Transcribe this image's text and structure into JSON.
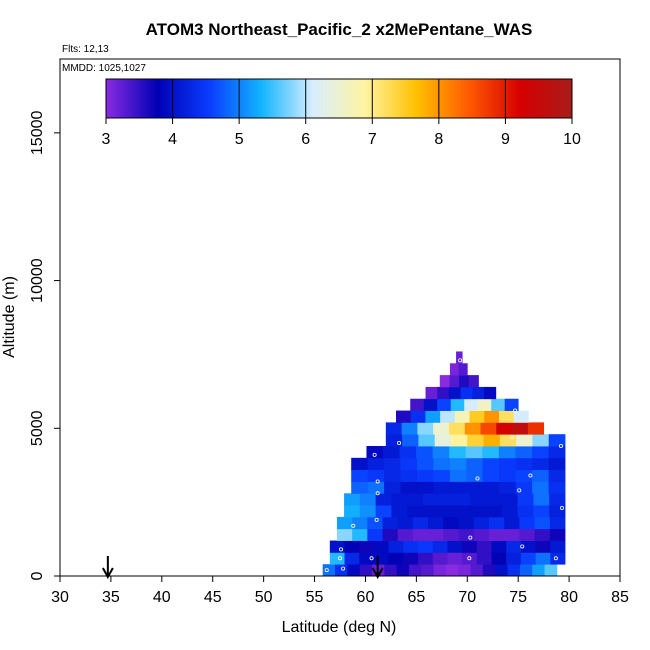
{
  "chart_data": {
    "type": "heatmap",
    "title": "ATOM3 Northeast_Pacific_2 x2MePentane_WAS",
    "flights_label": "Flts: 12,13",
    "dates_label": "MMDD: 1025,1027",
    "xlabel": "Latitude (deg N)",
    "ylabel": "Altitude (m)",
    "xlim": [
      30,
      85
    ],
    "ylim": [
      0,
      17500
    ],
    "x_ticks": [
      "30",
      "35",
      "40",
      "45",
      "50",
      "55",
      "60",
      "65",
      "70",
      "75",
      "80",
      "85"
    ],
    "y_ticks": [
      "0",
      "5000",
      "10000",
      "15000"
    ],
    "colorbar": {
      "range": [
        3,
        10
      ],
      "ticks": [
        "3",
        "4",
        "5",
        "6",
        "7",
        "8",
        "9",
        "10"
      ],
      "colors": [
        "#8a2be2",
        "#0000b4",
        "#0a3cff",
        "#12b4ff",
        "#d8eeff",
        "#fff4a0",
        "#ffc000",
        "#ff5a00",
        "#d60000",
        "#a81c1c"
      ]
    },
    "arrows_at_latitude": [
      34.7,
      61.2
    ],
    "altitude_bands": [
      {
        "alt": 200,
        "lat_min": 55.8,
        "lat_max": 78.8,
        "values": [
          4.9,
          4.4,
          3.9,
          3.5,
          3.2,
          3.5,
          3.7,
          3.4,
          3.3,
          3.1,
          3.0,
          3.1,
          3.3,
          3.6,
          4.0,
          4.4,
          4.8,
          5.2,
          5.6
        ]
      },
      {
        "alt": 600,
        "lat_min": 56.5,
        "lat_max": 79.6,
        "values": [
          5.4,
          4.3,
          3.9,
          3.9,
          3.8,
          3.7,
          3.5,
          3.3,
          3.2,
          3.3,
          3.5,
          3.8,
          4.2,
          4.6,
          4.9,
          4.3
        ]
      },
      {
        "alt": 1000,
        "lat_min": 56.5,
        "lat_max": 79.6,
        "values": [
          4.0,
          3.8,
          3.7,
          3.9,
          4.2,
          4.4,
          4.5,
          4.3,
          4.0,
          3.7,
          3.5,
          3.9,
          4.3,
          4.0,
          3.7,
          4.1
        ]
      },
      {
        "alt": 1400,
        "lat_min": 57.2,
        "lat_max": 79.6,
        "values": [
          5.8,
          5.4,
          4.5,
          3.6,
          3.3,
          3.2,
          3.2,
          3.3,
          3.4,
          3.3,
          3.2,
          3.2,
          3.3,
          3.5,
          3.7
        ]
      },
      {
        "alt": 1800,
        "lat_min": 57.2,
        "lat_max": 79.6,
        "values": [
          5.2,
          5.0,
          4.7,
          4.2,
          4.1,
          4.3,
          4.1,
          3.9,
          4.0,
          4.2,
          4.4,
          4.1,
          4.5,
          4.7,
          4.3
        ]
      },
      {
        "alt": 2200,
        "lat_min": 57.9,
        "lat_max": 79.6,
        "values": [
          5.3,
          5.1,
          4.6,
          4.1,
          4.0,
          4.0,
          4.0,
          4.0,
          4.0,
          4.0,
          4.1,
          4.4,
          4.6,
          4.2
        ]
      },
      {
        "alt": 2600,
        "lat_min": 57.9,
        "lat_max": 79.6,
        "values": [
          5.2,
          5.0,
          4.2,
          4.1,
          4.1,
          4.2,
          4.2,
          4.2,
          4.1,
          4.1,
          4.1,
          4.5,
          4.9,
          4.3
        ]
      },
      {
        "alt": 3000,
        "lat_min": 58.6,
        "lat_max": 79.6,
        "values": [
          4.8,
          4.9,
          4.2,
          4.0,
          4.0,
          4.1,
          4.1,
          4.1,
          4.1,
          4.2,
          4.5,
          4.9,
          4.4
        ]
      },
      {
        "alt": 3400,
        "lat_min": 58.6,
        "lat_max": 79.6,
        "values": [
          4.6,
          4.5,
          4.3,
          4.4,
          4.5,
          4.6,
          4.9,
          4.8,
          4.6,
          4.5,
          4.6,
          4.8,
          4.3
        ]
      },
      {
        "alt": 3800,
        "lat_min": 58.6,
        "lat_max": 79.6,
        "values": [
          4.0,
          4.2,
          4.3,
          4.5,
          4.7,
          4.9,
          5.0,
          4.8,
          4.6,
          4.5,
          4.4,
          4.3,
          4.1
        ]
      },
      {
        "alt": 4200,
        "lat_min": 60.1,
        "lat_max": 79.6,
        "values": [
          3.9,
          4.1,
          4.4,
          4.7,
          5.0,
          5.4,
          5.6,
          5.4,
          5.0,
          4.8,
          4.6,
          4.3
        ]
      },
      {
        "alt": 4600,
        "lat_min": 62.0,
        "lat_max": 79.6,
        "values": [
          4.2,
          4.8,
          5.6,
          6.4,
          6.9,
          7.4,
          7.8,
          7.2,
          6.5,
          5.8,
          4.6
        ]
      },
      {
        "alt": 5000,
        "lat_min": 62.0,
        "lat_max": 77.5,
        "values": [
          4.3,
          5.0,
          5.8,
          6.5,
          7.2,
          8.0,
          8.6,
          9.3,
          9.6,
          8.8
        ]
      },
      {
        "alt": 5400,
        "lat_min": 63.0,
        "lat_max": 76.0,
        "values": [
          3.6,
          4.4,
          5.2,
          6.0,
          6.7,
          7.5,
          8.0,
          7.2,
          6.1
        ]
      },
      {
        "alt": 5800,
        "lat_min": 64.4,
        "lat_max": 75.0,
        "values": [
          3.4,
          4.0,
          4.6,
          5.4,
          6.1,
          6.6,
          5.6,
          4.6
        ]
      },
      {
        "alt": 6200,
        "lat_min": 65.9,
        "lat_max": 72.8,
        "values": [
          3.2,
          3.5,
          4.0,
          4.4,
          4.2,
          3.9
        ]
      },
      {
        "alt": 6600,
        "lat_min": 67.3,
        "lat_max": 71.1,
        "values": [
          3.0,
          3.3,
          3.6,
          3.4
        ]
      },
      {
        "alt": 7000,
        "lat_min": 68.3,
        "lat_max": 70.0,
        "values": [
          3.1,
          3.3
        ]
      },
      {
        "alt": 7400,
        "lat_min": 68.9,
        "lat_max": 69.5,
        "values": [
          3.2
        ]
      }
    ],
    "samples": [
      {
        "x": 56.2,
        "y": 200
      },
      {
        "x": 57.8,
        "y": 250
      },
      {
        "x": 57.5,
        "y": 600
      },
      {
        "x": 60.6,
        "y": 600
      },
      {
        "x": 70.2,
        "y": 600
      },
      {
        "x": 78.7,
        "y": 600
      },
      {
        "x": 57.6,
        "y": 900
      },
      {
        "x": 75.4,
        "y": 1000
      },
      {
        "x": 70.3,
        "y": 1300
      },
      {
        "x": 58.8,
        "y": 1700
      },
      {
        "x": 61.1,
        "y": 1900
      },
      {
        "x": 79.3,
        "y": 2300
      },
      {
        "x": 61.2,
        "y": 2800
      },
      {
        "x": 75.1,
        "y": 2900
      },
      {
        "x": 61.2,
        "y": 3200
      },
      {
        "x": 71.0,
        "y": 3300
      },
      {
        "x": 76.2,
        "y": 3400
      },
      {
        "x": 60.9,
        "y": 4100
      },
      {
        "x": 63.3,
        "y": 4500
      },
      {
        "x": 79.2,
        "y": 4400
      },
      {
        "x": 74.4,
        "y": 4700
      },
      {
        "x": 74.7,
        "y": 5600
      },
      {
        "x": 69.3,
        "y": 7300
      }
    ]
  }
}
